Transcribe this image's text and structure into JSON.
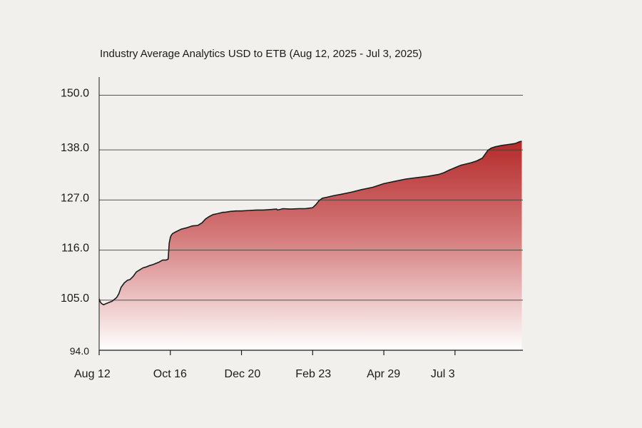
{
  "chart_data": {
    "type": "area",
    "title": "Industry Average Analytics  USD to ETB (Aug 12, 2025 - Jul 3, 2025)",
    "xlabel": "",
    "ylabel": "",
    "ylim": [
      94.0,
      154.0
    ],
    "y_ticks": [
      "150.0",
      "138.0",
      "127.0",
      "116.0",
      "105.0",
      "94.0"
    ],
    "y_tick_values": [
      150.0,
      138.0,
      127.0,
      116.0,
      105.0,
      94.0
    ],
    "x_ticks": [
      "Aug 12",
      "Oct 16",
      "Dec 20",
      "Feb 23",
      "Apr 29",
      "Jul 3"
    ],
    "x_tick_days": [
      0,
      65,
      130,
      195,
      260,
      325
    ],
    "xlim": [
      0,
      387
    ],
    "grid": "horizontal",
    "fill_colors": {
      "top": "#b52a2a",
      "bottom": "#ffffff"
    },
    "line_color": "#1b1b1b",
    "series": [
      {
        "x": [
          0,
          1,
          2,
          4,
          6,
          9,
          12,
          16,
          18,
          20,
          23,
          26,
          28,
          31,
          34,
          38,
          40,
          43,
          46,
          49,
          52,
          55,
          58,
          61,
          63,
          64,
          65,
          66,
          67,
          70,
          75,
          80,
          85,
          90,
          94,
          97,
          100,
          104,
          108,
          113,
          115,
          120,
          125,
          130,
          137,
          144,
          150,
          156,
          162,
          163,
          168,
          175,
          182,
          188,
          195,
          198,
          201,
          204,
          208,
          215,
          220,
          230,
          240,
          250,
          260,
          270,
          280,
          290,
          300,
          310,
          315,
          320,
          326,
          330,
          335,
          340,
          345,
          350,
          353,
          355,
          358,
          362,
          368,
          374,
          380,
          384,
          386
        ],
        "y": [
          105.3,
          104.6,
          104.3,
          104.0,
          104.2,
          104.5,
          104.8,
          105.6,
          106.4,
          107.8,
          108.8,
          109.4,
          109.5,
          110.2,
          111.2,
          111.8,
          112.1,
          112.3,
          112.6,
          112.8,
          113.1,
          113.4,
          113.8,
          113.8,
          114.0,
          117.5,
          118.8,
          119.3,
          119.6,
          120.0,
          120.6,
          120.9,
          121.3,
          121.4,
          122.0,
          122.8,
          123.3,
          123.8,
          124.0,
          124.3,
          124.3,
          124.5,
          124.6,
          124.6,
          124.7,
          124.8,
          124.8,
          124.9,
          125.0,
          124.8,
          125.1,
          125.0,
          125.1,
          125.1,
          125.3,
          126.0,
          126.9,
          127.4,
          127.6,
          128.0,
          128.2,
          128.7,
          129.3,
          129.8,
          130.6,
          131.1,
          131.6,
          131.9,
          132.2,
          132.6,
          133.0,
          133.6,
          134.2,
          134.6,
          134.9,
          135.2,
          135.6,
          136.2,
          137.2,
          137.9,
          138.4,
          138.7,
          139.0,
          139.2,
          139.4,
          139.8,
          139.9
        ]
      }
    ]
  }
}
